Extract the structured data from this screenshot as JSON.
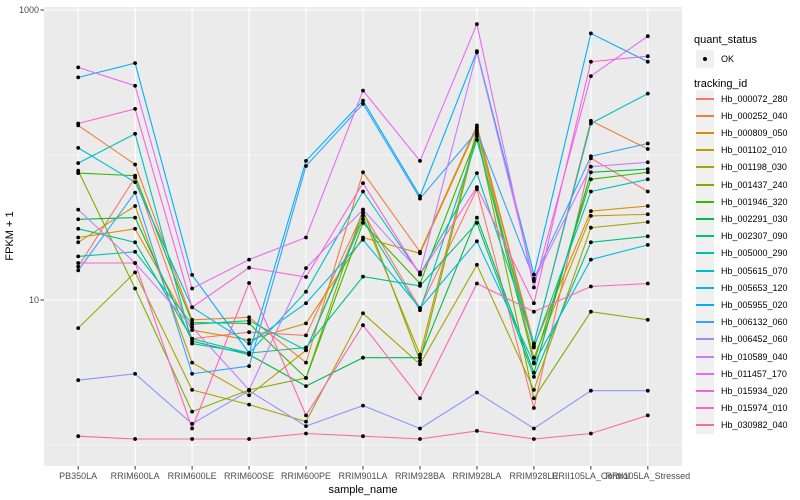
{
  "colors": {
    "background": "#ffffff",
    "panel_bg": "#ebebeb",
    "grid": "#ffffff",
    "point": "#000000",
    "axis_text": "#4d4d4d",
    "title_text": "#000000",
    "tick_mark": "#333333",
    "legend_key_bg": "#f0f0f0"
  },
  "chart_data": {
    "type": "line",
    "title": "",
    "xlabel": "sample_name",
    "ylabel": "FPKM + 1",
    "y_scale": "log10",
    "grid": "on",
    "legend_position": "right",
    "ylim": [
      0.72,
      1050
    ],
    "y_ticks": [
      {
        "label": "1000",
        "value": 1000
      },
      {
        "label": "10",
        "value": 10
      }
    ],
    "y_minor_gridlines": [
      100,
      1
    ],
    "categories": [
      "PB350LA",
      "RRIM600LA",
      "RRIM600LE",
      "RRIM600SE",
      "RRIM600PE",
      "RRIM901LA",
      "RRIM928BA",
      "RRIM928LA",
      "RRIM928LE",
      "RRII105LA_Control",
      "RRII105LA_Stressed"
    ],
    "legend": {
      "quant_status_title": "quant_status",
      "quant_status_entries": [
        {
          "label": "OK",
          "marker": "point"
        }
      ],
      "tracking_title": "tracking_id"
    },
    "series": [
      {
        "name": "Hb_000072_280",
        "color": "#F8766D",
        "values": [
          17,
          70,
          5.4,
          6.0,
          5.7,
          40,
          8.8,
          58,
          1.8,
          95,
          56
        ]
      },
      {
        "name": "Hb_000252_040",
        "color": "#EA8331",
        "values": [
          160,
          86,
          7.3,
          7.6,
          3.7,
          76,
          21.5,
          160,
          5.0,
          172,
          110
        ]
      },
      {
        "name": "Hb_000809_050",
        "color": "#D89000",
        "values": [
          27,
          31,
          6.2,
          5.3,
          6.9,
          27,
          21,
          155,
          4.8,
          41,
          44.5
        ]
      },
      {
        "name": "Hb_001102_010",
        "color": "#C09B00",
        "values": [
          25,
          44.5,
          3.7,
          2.2,
          4.5,
          38,
          4.2,
          150,
          4.0,
          38,
          39
        ]
      },
      {
        "name": "Hb_001198_030",
        "color": "#A3A500",
        "values": [
          6.4,
          15.5,
          2.4,
          1.9,
          1.45,
          8.1,
          3.6,
          17.5,
          2.4,
          31.5,
          34.5
        ]
      },
      {
        "name": "Hb_001437_240",
        "color": "#7CAE00",
        "values": [
          78,
          12,
          1.7,
          2.4,
          2.9,
          42,
          3.8,
          140,
          2.1,
          8.3,
          7.3
        ]
      },
      {
        "name": "Hb_001946_320",
        "color": "#39B600",
        "values": [
          75,
          72,
          7.0,
          6.9,
          2.9,
          34,
          13,
          135,
          3.7,
          68,
          76
        ]
      },
      {
        "name": "Hb_002291_030",
        "color": "#00BB4E",
        "values": [
          36,
          37,
          5.2,
          4.2,
          2.55,
          4.0,
          4.0,
          37,
          3.15,
          76,
          80
        ]
      },
      {
        "name": "Hb_002307_090",
        "color": "#00C087",
        "values": [
          31,
          25,
          5.4,
          4.3,
          4.7,
          14.5,
          12.5,
          34,
          2.95,
          25,
          27.5
        ]
      },
      {
        "name": "Hb_005000_290",
        "color": "#00C1AB",
        "values": [
          20,
          21.5,
          6.8,
          7.2,
          4.5,
          36,
          8.5,
          127,
          4.7,
          56,
          68
        ]
      },
      {
        "name": "Hb_005615_070",
        "color": "#00BFC4",
        "values": [
          88,
          140,
          5.0,
          4.3,
          11.4,
          56,
          15,
          75,
          5.0,
          165,
          265
        ]
      },
      {
        "name": "Hb_005653_120",
        "color": "#00BAE0",
        "values": [
          112,
          65,
          8.9,
          5.0,
          9.5,
          26,
          8.8,
          25.4,
          3.65,
          19,
          24
        ]
      },
      {
        "name": "Hb_005955_020",
        "color": "#00B0F6",
        "values": [
          343,
          430,
          14.9,
          4.3,
          91,
          237,
          52,
          520,
          15,
          690,
          440
        ]
      },
      {
        "name": "Hb_006132_060",
        "color": "#35A2FF",
        "values": [
          16,
          55,
          3.1,
          3.5,
          84,
          225,
          50,
          145,
          14,
          98,
          120
        ]
      },
      {
        "name": "Hb_006452_060",
        "color": "#9590FF",
        "values": [
          2.8,
          3.1,
          1.4,
          2.37,
          1.35,
          1.87,
          1.3,
          2.3,
          1.3,
          2.37,
          2.37
        ]
      },
      {
        "name": "Hb_010589_040",
        "color": "#C77CFF",
        "values": [
          42,
          18,
          6.5,
          2.4,
          16.6,
          42,
          15.5,
          510,
          13.5,
          83,
          89
        ]
      },
      {
        "name": "Hb_011457_170",
        "color": "#E76BF3",
        "values": [
          402,
          300,
          12,
          19,
          27,
          278,
          91,
          800,
          12.2,
          350,
          660
        ]
      },
      {
        "name": "Hb_015934_020",
        "color": "#FA62DB",
        "values": [
          165,
          208,
          8.9,
          16.7,
          14.4,
          64,
          15,
          60,
          9.5,
          440,
          480
        ]
      },
      {
        "name": "Hb_015974_010",
        "color": "#FF62BC",
        "values": [
          18,
          18,
          1.3,
          13.1,
          1.6,
          6.7,
          2.1,
          13,
          8.3,
          12.4,
          13
        ]
      },
      {
        "name": "Hb_030982_040",
        "color": "#FF6A98",
        "values": [
          1.15,
          1.1,
          1.1,
          1.1,
          1.2,
          1.15,
          1.1,
          1.25,
          1.1,
          1.2,
          1.6
        ]
      }
    ]
  }
}
